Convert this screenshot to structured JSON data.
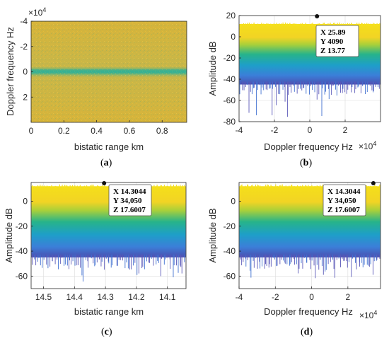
{
  "chart_data": [
    {
      "id": "a",
      "type": "heatmap",
      "caption": "(a)",
      "xlabel": "bistatic range km",
      "ylabel": "Doppler frequency Hz",
      "xlim": [
        0,
        0.95
      ],
      "ylim": [
        -40000,
        40000
      ],
      "y_reversed": true,
      "x_ticks": [
        "0",
        "0.2",
        "0.4",
        "0.6",
        "0.8"
      ],
      "y_ticks": [
        "-4",
        "-2",
        "0",
        "2"
      ],
      "y_exponent": "×10",
      "y_exponent_power": "4",
      "colors": {
        "background": "#d2b23c",
        "ridge": "#2fae96"
      }
    },
    {
      "id": "b",
      "type": "area",
      "caption": "(b)",
      "xlabel": "Doppler frequency Hz",
      "ylabel": "Amplitude dB",
      "xlim": [
        -40000,
        40000
      ],
      "ylim": [
        -80,
        20
      ],
      "x_ticks": [
        "-4",
        "-2",
        "0",
        "2"
      ],
      "x_exponent": "×10",
      "x_exponent_power": "4",
      "y_ticks": [
        "20",
        "0",
        "-20",
        "-40",
        "-60",
        "-80"
      ],
      "envelope": {
        "top_db": 12,
        "floor_db": -45,
        "deep_spike_db": -78
      },
      "datatip": {
        "x": 4090,
        "y": 13.77,
        "lines": [
          "X 25.89",
          "Y 4090",
          "Z 13.77"
        ]
      },
      "grid": true
    },
    {
      "id": "c",
      "type": "area",
      "caption": "(c)",
      "xlabel": "bistatic range km",
      "ylabel": "Amplitude dB",
      "xlim": [
        14.54,
        14.04
      ],
      "ylim": [
        -70,
        15
      ],
      "x_ticks": [
        "14.5",
        "14.4",
        "14.3",
        "14.2",
        "14.1"
      ],
      "y_ticks": [
        "0",
        "-20",
        "-40",
        "-60"
      ],
      "envelope": {
        "top_db": 12,
        "floor_db": -45,
        "deep_spike_db": -68
      },
      "datatip": {
        "x": 14.3044,
        "y": 17.6007,
        "lines": [
          "X 14.3044",
          "Y 34,050",
          "Z 17.6007"
        ]
      },
      "grid": true
    },
    {
      "id": "d",
      "type": "area",
      "caption": "(d)",
      "xlabel": "Doppler frequency Hz",
      "ylabel": "Amplitude dB",
      "xlim": [
        -40000,
        38000
      ],
      "ylim": [
        -70,
        15
      ],
      "x_ticks": [
        "-4",
        "-2",
        "0",
        "2"
      ],
      "x_exponent": "×10",
      "x_exponent_power": "4",
      "y_ticks": [
        "0",
        "-20",
        "-40",
        "-60"
      ],
      "envelope": {
        "top_db": 12,
        "floor_db": -45,
        "deep_spike_db": -62
      },
      "datatip": {
        "x": 34050,
        "y": 17.6007,
        "lines": [
          "X 14.3044",
          "Y 34,050",
          "Z 17.6007"
        ]
      },
      "grid": true
    }
  ]
}
